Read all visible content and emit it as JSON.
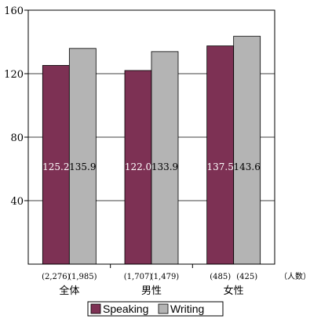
{
  "chart_data": {
    "type": "bar",
    "categories": [
      "全体",
      "男性",
      "女性"
    ],
    "category_counts": [
      [
        "(2,276)",
        "(1,985)"
      ],
      [
        "(1,707)",
        "(1,479)"
      ],
      [
        "(485)",
        "(425)"
      ]
    ],
    "count_unit": "（人数）",
    "series": [
      {
        "name": "Speaking",
        "values": [
          125.2,
          122.0,
          137.5
        ],
        "labels": [
          "125.2",
          "122.0",
          "137.5"
        ],
        "color": "#7d3154"
      },
      {
        "name": "Writing",
        "values": [
          135.9,
          133.9,
          143.6
        ],
        "labels": [
          "135.9",
          "133.9",
          "143.6"
        ],
        "color": "#b4b4b4"
      }
    ],
    "yticks": [
      "40",
      "80",
      "120",
      "160"
    ],
    "ylim": [
      0,
      160
    ],
    "grid": true,
    "legend_position": "bottom",
    "title": "",
    "xlabel": "",
    "ylabel": ""
  }
}
